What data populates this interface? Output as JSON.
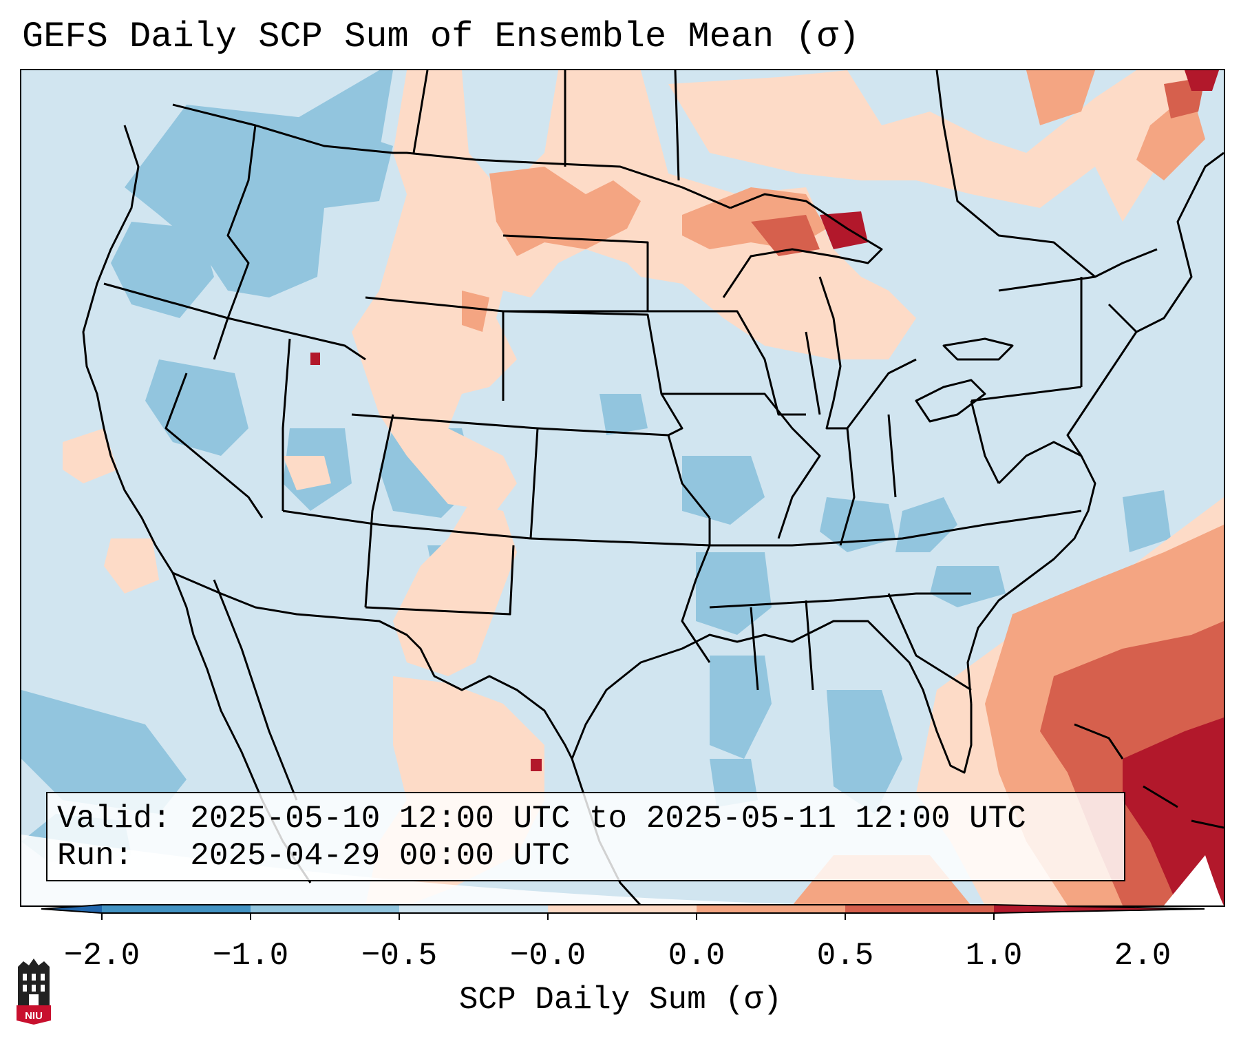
{
  "title": "GEFS Daily SCP Sum of Ensemble Mean (σ)",
  "info": {
    "valid_label": "Valid:",
    "valid_value": "2025-05-10 12:00 UTC to 2025-05-11 12:00 UTC",
    "run_label": "Run:",
    "run_value": "2025-04-29 00:00 UTC"
  },
  "colorbar": {
    "label": "SCP Daily Sum (σ)",
    "ticks": [
      "−2.0",
      "−1.0",
      "−0.5",
      "−0.0",
      "0.0",
      "0.5",
      "1.0",
      "2.0"
    ],
    "colors": [
      "#4393c3",
      "#92c5de",
      "#d1e5f0",
      "#fddbc7",
      "#f4a582",
      "#d6604d"
    ],
    "under_color": "#2166ac",
    "over_color": "#b2182b"
  },
  "logo": {
    "text": "NIU",
    "icon": "university-logo-icon"
  },
  "map": {
    "projection": "lambert-conformal",
    "region": "CONUS"
  }
}
